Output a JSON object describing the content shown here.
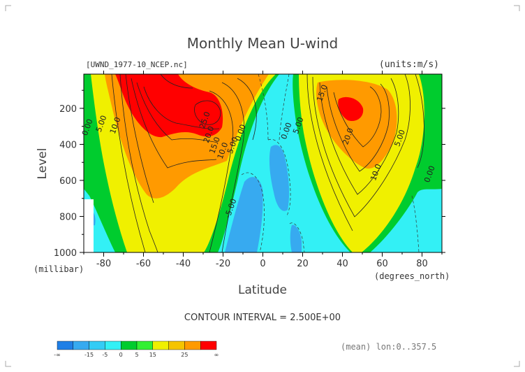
{
  "chart_data": {
    "type": "contour",
    "title": "Monthly Mean U-wind",
    "file_label": "[UWND_1977-10_NCEP.nc]",
    "units_label": "(units:m/s)",
    "xlabel": "Latitude",
    "x_unit": "(degrees_north)",
    "ylabel": "Level",
    "y_unit": "(millibar)",
    "xlim": [
      -90,
      90
    ],
    "ylim": [
      1000,
      10
    ],
    "x_ticks": [
      "-80",
      "-60",
      "-40",
      "-20",
      "0",
      "20",
      "40",
      "60",
      "80"
    ],
    "y_ticks": [
      "200",
      "400",
      "600",
      "800",
      "1000"
    ],
    "contour_interval_text": "CONTOUR INTERVAL = 2.500E+00",
    "mean_text": "(mean) lon:0..357.5",
    "contour_labels": [
      {
        "text": "0.00",
        "lat": -87,
        "lev": 310
      },
      {
        "text": "5.00",
        "lat": -80,
        "lev": 290
      },
      {
        "text": "10.0",
        "lat": -73,
        "lev": 300
      },
      {
        "text": "25.0",
        "lat": -28,
        "lev": 270
      },
      {
        "text": "20.0",
        "lat": -26,
        "lev": 350
      },
      {
        "text": "15.0",
        "lat": -23,
        "lev": 410
      },
      {
        "text": "10.0",
        "lat": -19,
        "lev": 440
      },
      {
        "text": "5.00",
        "lat": -14,
        "lev": 410
      },
      {
        "text": "0.00",
        "lat": -10,
        "lev": 340
      },
      {
        "text": "0.00",
        "lat": 13,
        "lev": 330
      },
      {
        "text": "5.00",
        "lat": 19,
        "lev": 300
      },
      {
        "text": "15.0",
        "lat": 31,
        "lev": 120
      },
      {
        "text": "20.0",
        "lat": 44,
        "lev": 360
      },
      {
        "text": "10.0",
        "lat": 58,
        "lev": 560
      },
      {
        "text": "5.00",
        "lat": 70,
        "lev": 370
      },
      {
        "text": "0.00",
        "lat": 85,
        "lev": 570
      },
      {
        "text": "-5.00",
        "lat": -15,
        "lev": 760
      }
    ],
    "colorbar": {
      "colors": [
        "#1f7fe6",
        "#37aaf0",
        "#33ccf5",
        "#33f0f5",
        "#00cc2e",
        "#33f033",
        "#f0f000",
        "#f5c400",
        "#ff9a00",
        "#ff0000"
      ],
      "tick_labels": [
        "-∞",
        "-15",
        "-5",
        "0",
        "5",
        "15",
        "25",
        "∞"
      ]
    }
  }
}
